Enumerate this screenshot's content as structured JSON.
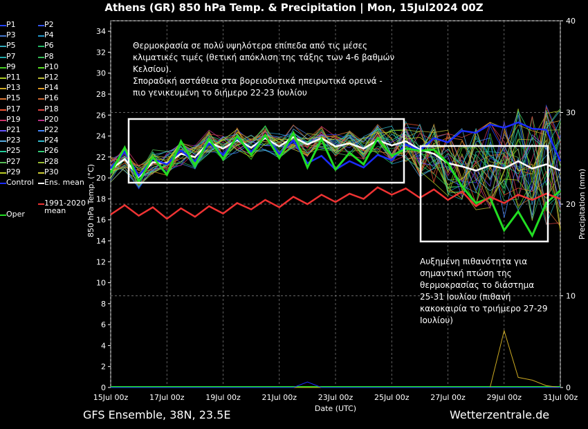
{
  "title": "Athens  (GR)  850 hPa Temp. & Precipitation | Mon, 15Jul2024 00Z",
  "footer": {
    "left": "GFS Ensemble, 38N, 23.5E",
    "right": "Wetterzentrale.de"
  },
  "annotations": [
    "Θερμοκρασία σε πολύ υψηλότερα επίπεδα από τις μέσες\nκλιματικές τιμές (θετική απόκλιση της τάξης των 4-6 βαθμών\nΚελσίου).\nΣποραδική αστάθεια στα βορειοδυτικά ηπειρωτικά ορεινά -\nπιο γενικευμένη το διήμερο 22-23 Ιουλίου",
    "Αυξημένη πιθανότητα για\nσημαντική πτώση της\nθερμοκρασίας το διάστημα\n25-31 Ιουλίου (πιθανή\nκακοκαιρία το τριήμερο 27-29\nΙουλίου)"
  ],
  "legend": [
    {
      "label": "P1",
      "color": "#2244ff"
    },
    {
      "label": "P2",
      "color": "#3355ee"
    },
    {
      "label": "P3",
      "color": "#4477cc"
    },
    {
      "label": "P4",
      "color": "#2299cc"
    },
    {
      "label": "P5",
      "color": "#33aabb"
    },
    {
      "label": "P6",
      "color": "#22bb66"
    },
    {
      "label": "P7",
      "color": "#22aaaa"
    },
    {
      "label": "P8",
      "color": "#33bb55"
    },
    {
      "label": "P9",
      "color": "#44cc22"
    },
    {
      "label": "P10",
      "color": "#55dd22"
    },
    {
      "label": "P11",
      "color": "#aacc22"
    },
    {
      "label": "P12",
      "color": "#bbbb33"
    },
    {
      "label": "P13",
      "color": "#ccaa22"
    },
    {
      "label": "P14",
      "color": "#dd9922"
    },
    {
      "label": "P15",
      "color": "#dd7733"
    },
    {
      "label": "P16",
      "color": "#cc6633"
    },
    {
      "label": "P17",
      "color": "#ee5533"
    },
    {
      "label": "P18",
      "color": "#dd4444"
    },
    {
      "label": "P19",
      "color": "#cc3366"
    },
    {
      "label": "P20",
      "color": "#bb3388"
    },
    {
      "label": "P21",
      "color": "#6655ff"
    },
    {
      "label": "P22",
      "color": "#4488ff"
    },
    {
      "label": "P23",
      "color": "#55aadd"
    },
    {
      "label": "P24",
      "color": "#33bbcc"
    },
    {
      "label": "P25",
      "color": "#22cc99"
    },
    {
      "label": "P26",
      "color": "#33cc77"
    },
    {
      "label": "P27",
      "color": "#55bb55"
    },
    {
      "label": "P28",
      "color": "#99bb33"
    },
    {
      "label": "P29",
      "color": "#bbcc22"
    },
    {
      "label": "P30",
      "color": "#cccc33"
    },
    {
      "label": "Control",
      "color": "#1a2cff"
    },
    {
      "label": "Ens. mean",
      "color": "#ffffff"
    },
    {
      "label": "Oper",
      "color": "#22dd22"
    },
    {
      "label": "1991-2020\nmean",
      "color": "#ee3333"
    }
  ],
  "chart_data": {
    "type": "line",
    "title": "Athens  (GR)  850 hPa Temp. & Precipitation | Mon, 15Jul2024 00Z",
    "xlabel": "Date (UTC)",
    "ylabel": "850 hPa Temp. (°C)",
    "y2label": "Precipitation (mm)",
    "ylim": [
      0,
      35
    ],
    "y2lim": [
      0,
      40
    ],
    "xlim": [
      "15Jul 00z",
      "31Jul 00z"
    ],
    "x_tick_labels": [
      "15Jul 00z",
      "17Jul 00z",
      "19Jul 00z",
      "21Jul 00z",
      "23Jul 00z",
      "25Jul 00z",
      "27Jul 00z",
      "29Jul 00z",
      "31Jul 00z"
    ],
    "y_ticks": [
      0,
      2,
      4,
      6,
      8,
      10,
      12,
      14,
      16,
      18,
      20,
      22,
      24,
      26,
      28,
      30,
      32,
      34
    ],
    "y2_ticks": [
      0,
      10,
      20,
      30,
      40
    ],
    "x_days": [
      0,
      0.5,
      1,
      1.5,
      2,
      2.5,
      3,
      3.5,
      4,
      4.5,
      5,
      5.5,
      6,
      6.5,
      7,
      7.5,
      8,
      8.5,
      9,
      9.5,
      10,
      10.5,
      11,
      11.5,
      12,
      12.5,
      13,
      13.5,
      14,
      14.5,
      15,
      15.5,
      16
    ],
    "series": [
      {
        "name": "Ens. mean",
        "color": "#ffffff",
        "values": [
          20.8,
          21.8,
          20.1,
          21.5,
          21.4,
          22.3,
          22.0,
          23.4,
          22.8,
          23.6,
          22.9,
          23.8,
          23.0,
          23.9,
          23.2,
          23.8,
          23.0,
          23.3,
          22.8,
          23.6,
          23.1,
          23.5,
          22.7,
          22.3,
          21.4,
          21.1,
          20.7,
          21.2,
          20.9,
          21.6,
          20.9,
          21.3,
          20.7
        ]
      },
      {
        "name": "Control",
        "color": "#1a2cff",
        "values": [
          20.9,
          22.5,
          20.2,
          21.8,
          21.3,
          22.6,
          21.6,
          23.3,
          22.2,
          23.8,
          22.5,
          24.0,
          22.3,
          23.6,
          21.4,
          22.1,
          20.8,
          21.6,
          21.0,
          22.2,
          21.7,
          23.2,
          22.6,
          23.8,
          23.4,
          24.5,
          24.3,
          25.1,
          24.8,
          25.3,
          24.7,
          24.6,
          21.6
        ]
      },
      {
        "name": "Oper",
        "color": "#22dd22",
        "values": [
          20.5,
          22.9,
          19.6,
          22.0,
          20.3,
          23.5,
          21.2,
          23.7,
          21.8,
          24.0,
          22.2,
          24.1,
          21.9,
          24.3,
          21.0,
          23.7,
          20.8,
          22.4,
          21.3,
          23.8,
          22.1,
          22.8,
          22.6,
          22.7,
          21.4,
          19.2,
          17.6,
          18.1,
          15.0,
          16.8,
          14.5,
          17.6,
          18.8
        ]
      },
      {
        "name": "1991-2020\nmean",
        "color": "#ee3333",
        "values": [
          16.5,
          17.4,
          16.4,
          17.2,
          16.1,
          17.1,
          16.3,
          17.3,
          16.6,
          17.6,
          17.0,
          17.9,
          17.2,
          18.2,
          17.5,
          18.4,
          17.7,
          18.5,
          18.0,
          19.1,
          18.4,
          19.0,
          18.1,
          18.9,
          17.9,
          18.7,
          17.3,
          18.2,
          17.6,
          18.4,
          17.9,
          18.5,
          18.0
        ]
      }
    ],
    "precipitation": [
      {
        "name": "P14",
        "color": "#ccaa22",
        "values": [
          0,
          0,
          0,
          0,
          0,
          0,
          0,
          0,
          0,
          0,
          0,
          0,
          0,
          0,
          0,
          0,
          0,
          0,
          0,
          0,
          0,
          0,
          0,
          0,
          0,
          0,
          0,
          0,
          6.2,
          1.1,
          0.8,
          0.2,
          0
        ]
      },
      {
        "name": "Control",
        "color": "#1a2cff",
        "values": [
          0,
          0,
          0,
          0,
          0,
          0,
          0,
          0,
          0,
          0,
          0,
          0,
          0,
          0,
          0.6,
          0,
          0,
          0,
          0,
          0,
          0,
          0,
          0,
          0,
          0,
          0,
          0,
          0,
          0,
          0,
          0,
          0,
          0
        ]
      }
    ]
  }
}
